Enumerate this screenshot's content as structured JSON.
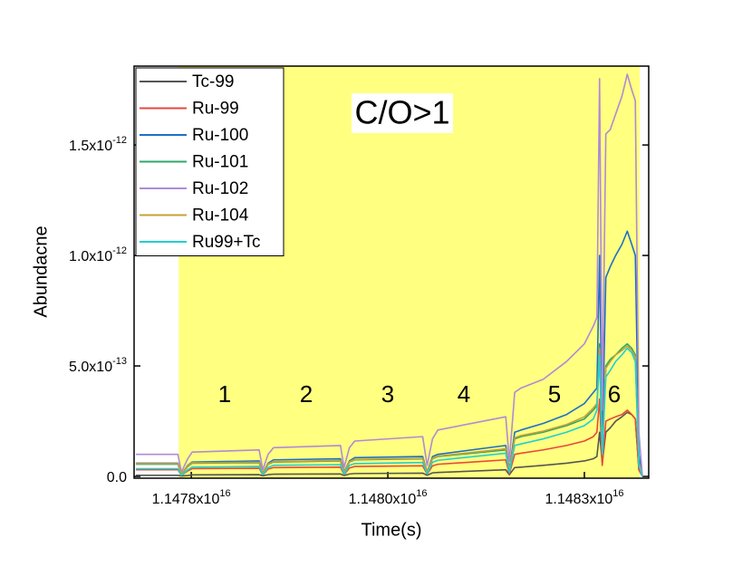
{
  "chart_data": {
    "type": "line",
    "xlabel": "Time(s)",
    "ylabel": "Abundacne",
    "xlim": [
      1.147746e+16,
      1.148322e+16
    ],
    "ylim": [
      -8e-15,
      1.857e-12
    ],
    "xticks": [
      {
        "value": 1.14781e+16,
        "label": "1.1478x10",
        "exponent": "16"
      },
      {
        "value": 1.14803e+16,
        "label": "1.1480x10",
        "exponent": "16"
      },
      {
        "value": 1.14825e+16,
        "label": "1.1483x10",
        "exponent": "16"
      }
    ],
    "yticks": [
      {
        "value": 0,
        "label": "0.0"
      },
      {
        "value": 5e-13,
        "label": "5.0x10",
        "exponent": "-13"
      },
      {
        "value": 1e-12,
        "label": "1.0x10",
        "exponent": "-12"
      },
      {
        "value": 1.5e-12,
        "label": "1.5x10",
        "exponent": "-12"
      }
    ],
    "highlight": {
      "xlim": [
        1.147796e+16,
        1.148312e+16
      ],
      "color": "#ffff80"
    },
    "legend": "upper left",
    "annotations": [
      "C/O>1",
      "1",
      "2",
      "3",
      "4",
      "5",
      "6"
    ],
    "x": [
      1.147748e+16,
      1.147795e+16,
      1.147799e+16,
      1.147806e+16,
      1.147811e+16,
      1.147886e+16,
      1.14789e+16,
      1.147896e+16,
      1.147902e+16,
      1.147977e+16,
      1.147981e+16,
      1.147987e+16,
      1.147993e+16,
      1.148069e+16,
      1.148074e+16,
      1.14808e+16,
      1.148086e+16,
      1.148162e+16,
      1.148166e+16,
      1.148172e+16,
      1.148179e+16,
      1.148204e+16,
      1.14823e+16,
      1.14825e+16,
      1.14826e+16,
      1.148264e+16,
      1.148267e+16,
      1.14827e+16,
      1.148274e+16,
      1.148279e+16,
      1.148285e+16,
      1.148292e+16,
      1.148298e+16,
      1.148303e+16,
      1.148307e+16,
      1.148311e+16,
      1.148315e+16
    ],
    "series": [
      {
        "name": "Tc-99",
        "color": "#555555",
        "values": [
          5e-15,
          5e-15,
          2e-15,
          4e-15,
          7e-15,
          8e-15,
          3e-15,
          8e-15,
          1e-14,
          1.1e-14,
          4e-15,
          1.1e-14,
          1.3e-14,
          1.5e-14,
          5e-15,
          1.6e-14,
          1.8e-14,
          3e-14,
          8e-15,
          4e-14,
          4.2e-14,
          5e-14,
          6e-14,
          7e-14,
          8e-14,
          9e-14,
          2e-13,
          6e-14,
          2e-13,
          2.2e-13,
          2.5e-13,
          2.7e-13,
          2.9e-13,
          2.8e-13,
          2.6e-13,
          3e-14,
          0
        ]
      },
      {
        "name": "Ru-99",
        "color": "#e8483c",
        "values": [
          3e-14,
          3e-14,
          5e-15,
          2.5e-14,
          3.5e-14,
          3.7e-14,
          7e-15,
          3.3e-14,
          4e-14,
          4.2e-14,
          8e-15,
          3.8e-14,
          4.5e-14,
          4.8e-14,
          1e-14,
          4.8e-14,
          5.5e-14,
          7.5e-14,
          1.2e-14,
          1e-13,
          1.05e-13,
          1.2e-13,
          1.4e-13,
          1.6e-13,
          1.8e-13,
          2e-13,
          3.5e-13,
          5e-14,
          2.5e-13,
          2.6e-13,
          2.7e-13,
          2.8e-13,
          3e-13,
          2.8e-13,
          2.6e-13,
          3e-14,
          0
        ]
      },
      {
        "name": "Ru-100",
        "color": "#1f6fc6",
        "values": [
          6e-14,
          6e-14,
          1e-14,
          5e-14,
          6.5e-14,
          7e-14,
          1.5e-14,
          6e-14,
          7.5e-14,
          8e-14,
          2e-14,
          7e-14,
          8.5e-14,
          9e-14,
          2e-14,
          9e-14,
          1e-13,
          1.4e-13,
          3e-14,
          2e-13,
          2.1e-13,
          2.4e-13,
          2.8e-13,
          3.3e-13,
          3.8e-13,
          4e-13,
          1e-12,
          1.5e-13,
          9e-13,
          9.5e-13,
          1e-12,
          1.05e-12,
          1.11e-12,
          1.05e-12,
          1e-12,
          1e-13,
          0
        ]
      },
      {
        "name": "Ru-101",
        "color": "#2ca86a",
        "values": [
          5.5e-14,
          5.5e-14,
          1e-14,
          4.5e-14,
          6e-14,
          6.2e-14,
          1.2e-14,
          5.5e-14,
          6.5e-14,
          7e-14,
          1.5e-14,
          6.5e-14,
          7.5e-14,
          8e-14,
          2e-14,
          8e-14,
          9e-14,
          1.2e-13,
          2.5e-14,
          1.7e-13,
          1.8e-13,
          2e-13,
          2.3e-13,
          2.6e-13,
          3e-13,
          3.2e-13,
          6e-13,
          1e-13,
          5e-13,
          5.3e-13,
          5.5e-13,
          5.8e-13,
          6e-13,
          5.8e-13,
          5.5e-13,
          6e-14,
          0
        ]
      },
      {
        "name": "Ru-102",
        "color": "#b08ad8",
        "values": [
          1e-13,
          1e-13,
          2e-14,
          8e-14,
          1.1e-13,
          1.2e-13,
          3e-14,
          1e-13,
          1.3e-13,
          1.4e-13,
          4e-14,
          1.3e-13,
          1.6e-13,
          1.8e-13,
          5e-14,
          1.7e-13,
          2.1e-13,
          2.7e-13,
          7e-14,
          3.8e-13,
          4e-13,
          4.4e-13,
          5.2e-13,
          6e-13,
          6.8e-13,
          7.2e-13,
          1.8e-12,
          3e-13,
          1.55e-12,
          1.57e-12,
          1.64e-12,
          1.72e-12,
          1.82e-12,
          1.75e-12,
          1.7e-12,
          2e-13,
          0
        ]
      },
      {
        "name": "Ru-104",
        "color": "#c8a03a",
        "values": [
          5.8e-14,
          5.8e-14,
          1.2e-14,
          4.8e-14,
          6.2e-14,
          6.4e-14,
          1.4e-14,
          5.7e-14,
          6.7e-14,
          7.2e-14,
          1.6e-14,
          6.7e-14,
          7.7e-14,
          8.2e-14,
          2e-14,
          8.2e-14,
          9.2e-14,
          1.25e-13,
          2.6e-14,
          1.75e-13,
          1.85e-13,
          2.05e-13,
          2.35e-13,
          2.7e-13,
          3.1e-13,
          3.3e-13,
          5.8e-13,
          1e-13,
          4.9e-13,
          5.2e-13,
          5.5e-13,
          5.7e-13,
          5.9e-13,
          5.7e-13,
          5.4e-13,
          6e-14,
          0
        ]
      },
      {
        "name": "Ru99+Tc",
        "color": "#20d0d0",
        "values": [
          3.5e-14,
          3.5e-14,
          5e-15,
          3e-14,
          4.2e-14,
          4.5e-14,
          8e-15,
          4e-14,
          5e-14,
          5.3e-14,
          1e-14,
          5e-14,
          5.8e-14,
          6.3e-14,
          1.2e-14,
          6.4e-14,
          7.3e-14,
          1.05e-13,
          1.8e-14,
          1.4e-13,
          1.47e-13,
          1.7e-13,
          2e-13,
          2.3e-13,
          2.6e-13,
          3e-13,
          5.5e-13,
          1e-13,
          4.5e-13,
          4.8e-13,
          5.2e-13,
          5.5e-13,
          5.8e-13,
          5.6e-13,
          5.2e-13,
          5e-14,
          0
        ]
      }
    ]
  }
}
